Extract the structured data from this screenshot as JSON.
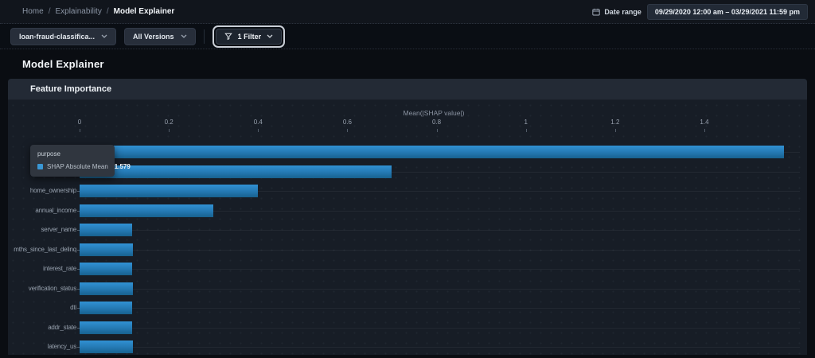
{
  "breadcrumb": {
    "links": [
      "Home",
      "Explainability"
    ],
    "separator": "/",
    "current": "Model Explainer"
  },
  "date_range": {
    "label": "Date range",
    "value": "09/29/2020 12:00 am – 03/29/2021 11:59 pm"
  },
  "toolbar": {
    "model_selector": "loan-fraud-classifica...",
    "version_selector": "All Versions",
    "filter_label": "1 Filter"
  },
  "page": {
    "title": "Model Explainer"
  },
  "panel": {
    "title": "Feature Importance"
  },
  "tooltip": {
    "title": "purpose",
    "series": "SHAP Absolute Mean",
    "value": "1.579",
    "marker_color": "#3a97d4"
  },
  "colors": {
    "accent_blue": "#2f8ecd",
    "bar_gradient_top": "#3191d3",
    "bar_gradient_bottom": "#17618f",
    "panel_bg": "#171d26",
    "panel_header_bg": "#232a35",
    "page_bg": "#0a0d12"
  },
  "chart_data": {
    "type": "bar",
    "orientation": "horizontal",
    "title": "Feature Importance",
    "xlabel": "Mean(|SHAP value|)",
    "ylabel": "",
    "series_name": "SHAP Absolute Mean",
    "categories": [
      "purpose",
      "",
      "home_ownership",
      "annual_income",
      "server_name",
      "mths_since_last_delinq",
      "interest_rate",
      "verification_status",
      "dti",
      "addr_state",
      "latency_us"
    ],
    "values": [
      1.579,
      0.7,
      0.4,
      0.3,
      0.118,
      0.12,
      0.118,
      0.12,
      0.117,
      0.117,
      0.12
    ],
    "xlim": [
      0,
      1.6
    ],
    "xticks": [
      0,
      0.2,
      0.4,
      0.6,
      0.8,
      1,
      1.2,
      1.4
    ],
    "xtick_labels": [
      "0",
      "0.2",
      "0.4",
      "0.6",
      "0.8",
      "1",
      "1.2",
      "1.4"
    ],
    "highlighted_category": "purpose",
    "legend_position": "tooltip-only",
    "grid": "row-lines"
  }
}
